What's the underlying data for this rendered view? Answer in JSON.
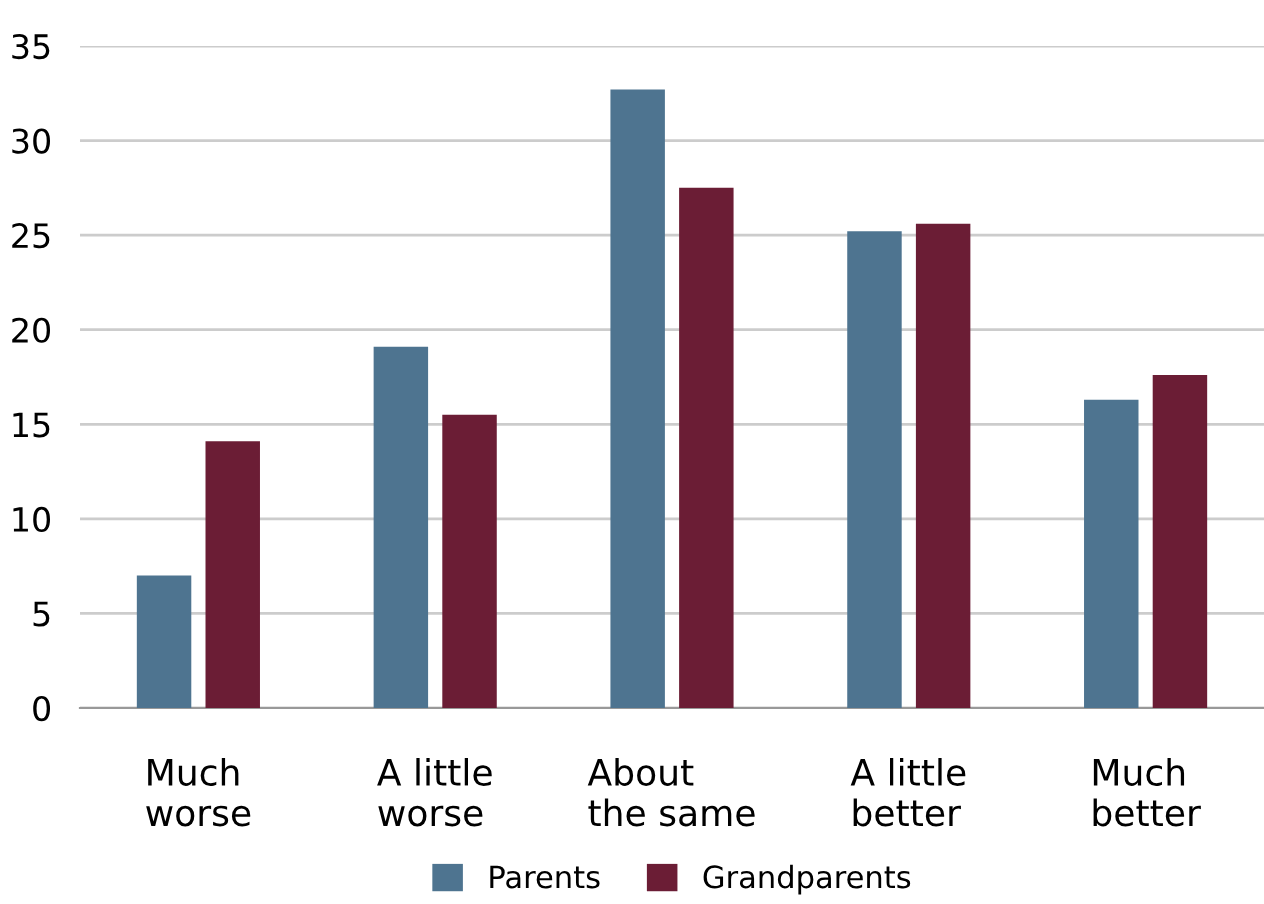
{
  "chart_data": {
    "type": "bar",
    "categories": [
      "Much\nworse",
      "A little\nworse",
      "About\nthe same",
      "A little\nbetter",
      "Much\nbetter"
    ],
    "series": [
      {
        "name": "Parents",
        "color": "#4e7490",
        "values": [
          7.0,
          19.1,
          32.7,
          25.2,
          16.3
        ]
      },
      {
        "name": "Grandparents",
        "color": "#6b1d35",
        "values": [
          14.1,
          15.5,
          27.5,
          25.6,
          17.6
        ]
      }
    ],
    "ylim": [
      0,
      35
    ],
    "yticks": [
      0,
      5,
      10,
      15,
      20,
      25,
      30,
      35
    ],
    "grid": "y",
    "legend": "bottom"
  }
}
